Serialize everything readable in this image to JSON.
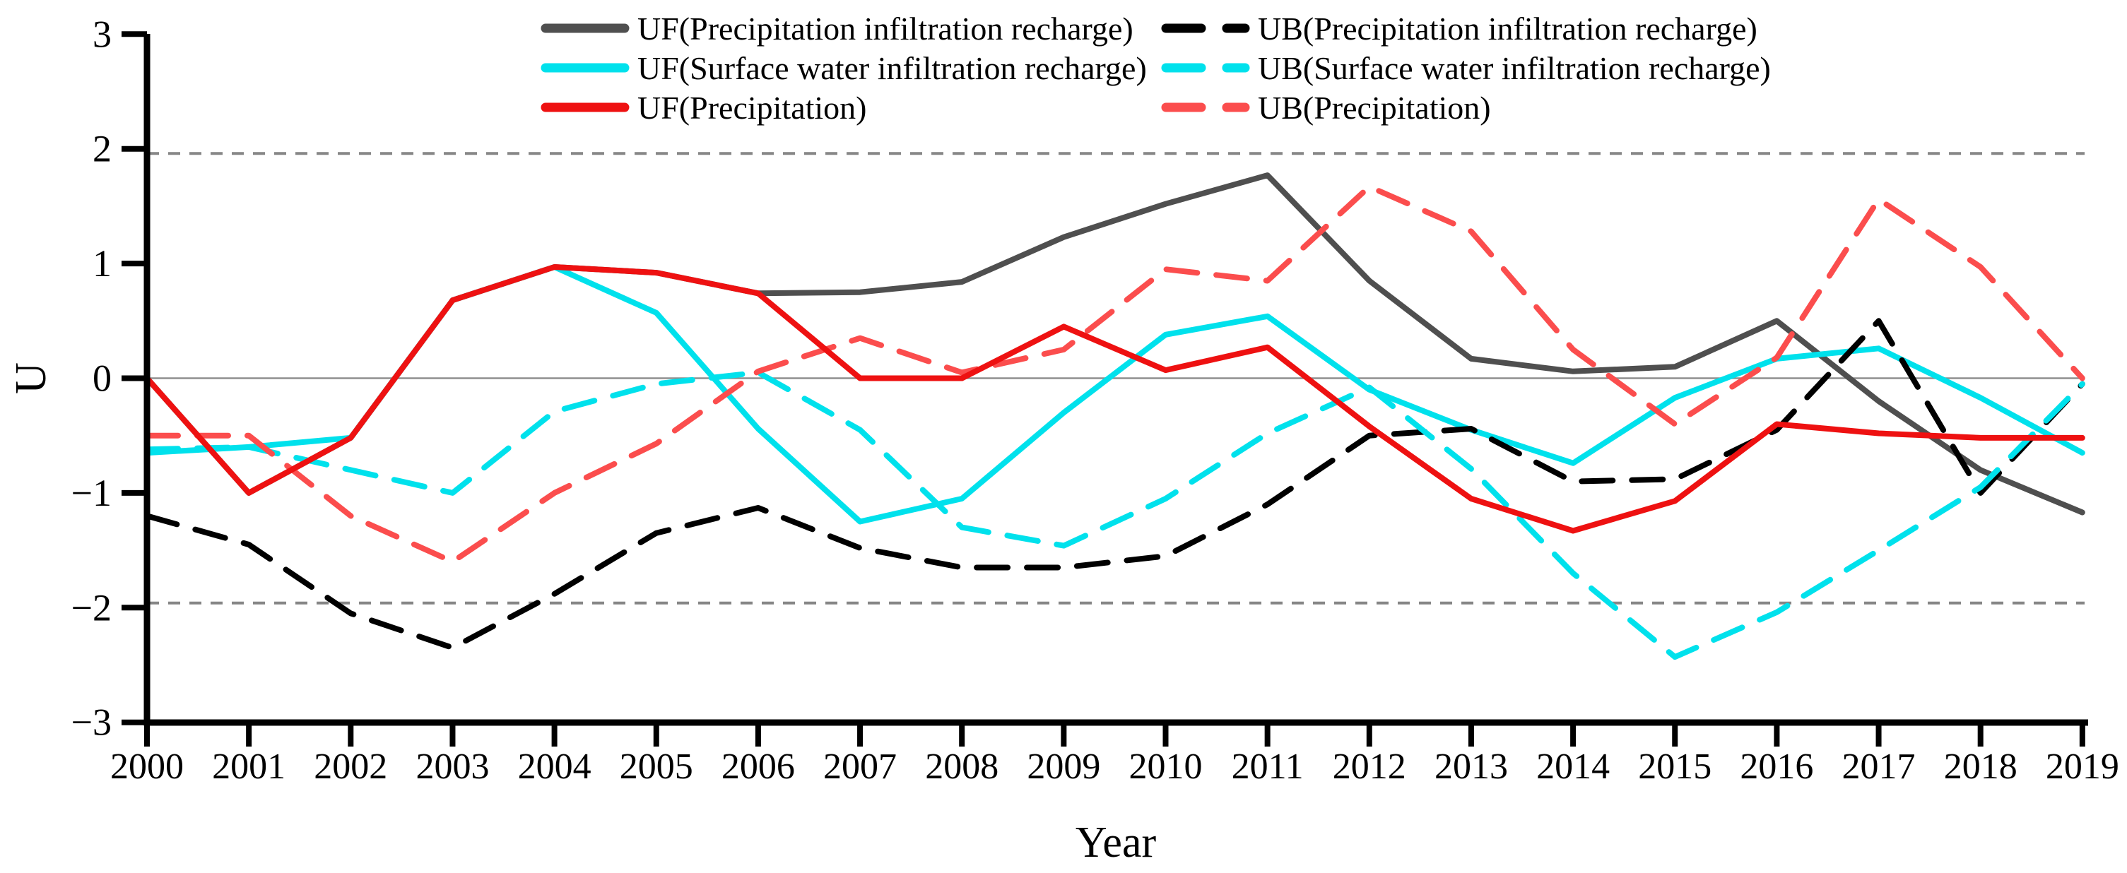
{
  "axes": {
    "x_label": "Year",
    "y_label": "U",
    "y_ticks": [
      {
        "v": 3,
        "label": "3"
      },
      {
        "v": 2,
        "label": "2"
      },
      {
        "v": 1,
        "label": "1"
      },
      {
        "v": 0,
        "label": "0"
      },
      {
        "v": -1,
        "label": "−1"
      },
      {
        "v": -2,
        "label": "−2"
      },
      {
        "v": -3,
        "label": "−3"
      }
    ]
  },
  "colors": {
    "uf_infiltration_gray": "#4f4f4f",
    "cyan": "#00e1ec",
    "red_solid": "#ee1111",
    "red_dashed": "#fb4d4d",
    "black": "#000000",
    "critical_line": "#868686",
    "zero_line": "#8f8f8f"
  },
  "chart_data": {
    "type": "line",
    "title": "",
    "xlabel": "Year",
    "ylabel": "U",
    "x": [
      2000,
      2001,
      2002,
      2003,
      2004,
      2005,
      2006,
      2007,
      2008,
      2009,
      2010,
      2011,
      2012,
      2013,
      2014,
      2015,
      2016,
      2017,
      2018,
      2019
    ],
    "ylim": [
      -3,
      3
    ],
    "xlim": [
      2000,
      2019
    ],
    "grid": false,
    "critical_values": [
      1.96,
      -1.96
    ],
    "zero_line": 0,
    "series": [
      {
        "name": "UF(Precipitation infiltration recharge)",
        "slug": "uf-precipitation-infiltration-recharge",
        "color": "#4f4f4f",
        "style": "solid",
        "values": [
          0.0,
          -1.0,
          -0.52,
          0.68,
          0.97,
          0.92,
          0.74,
          0.75,
          0.84,
          1.23,
          1.52,
          1.77,
          0.85,
          0.17,
          0.06,
          0.1,
          0.5,
          -0.2,
          -0.8,
          -1.17
        ]
      },
      {
        "name": "UF(Surface water infiltration recharge)",
        "slug": "uf-surface-water-infiltration-recharge",
        "color": "#00e1ec",
        "style": "solid",
        "values": [
          -0.65,
          -0.6,
          -0.52,
          0.68,
          0.97,
          0.57,
          -0.44,
          -1.25,
          -1.05,
          -0.3,
          0.38,
          0.54,
          -0.1,
          -0.45,
          -0.74,
          -0.17,
          0.17,
          0.26,
          -0.17,
          -0.65
        ]
      },
      {
        "name": "UB(Precipitation infiltration recharge)",
        "slug": "ub-precipitation-infiltration-recharge",
        "color": "#000000",
        "style": "dashed",
        "values": [
          -1.2,
          -1.45,
          -2.05,
          -2.35,
          -1.88,
          -1.35,
          -1.13,
          -1.48,
          -1.65,
          -1.65,
          -1.55,
          -1.1,
          -0.5,
          -0.44,
          -0.9,
          -0.88,
          -0.45,
          0.5,
          -1.0,
          -0.05
        ]
      },
      {
        "name": "UB(Surface water infiltration recharge)",
        "slug": "ub-surface-water-infiltration-recharge",
        "color": "#00e1ec",
        "style": "dashed",
        "values": [
          -0.62,
          -0.6,
          -0.8,
          -1.0,
          -0.29,
          -0.05,
          0.05,
          -0.45,
          -1.3,
          -1.46,
          -1.05,
          -0.48,
          -0.08,
          -0.79,
          -1.7,
          -2.43,
          -2.04,
          -1.5,
          -0.95,
          -0.05
        ]
      },
      {
        "name": "UB(Precipitation)",
        "slug": "ub-precipitation",
        "color": "#fb4d4d",
        "style": "dashed",
        "values": [
          -0.5,
          -0.5,
          -1.2,
          -1.6,
          -1.0,
          -0.57,
          0.06,
          0.35,
          0.05,
          0.25,
          0.95,
          0.85,
          1.67,
          1.28,
          0.25,
          -0.4,
          0.18,
          1.56,
          0.97,
          0.0
        ]
      },
      {
        "name": "UF(Precipitation)",
        "slug": "uf-precipitation",
        "color": "#ee1111",
        "style": "solid",
        "values": [
          0.0,
          -1.0,
          -0.52,
          0.68,
          0.97,
          0.92,
          0.74,
          0.0,
          0.0,
          0.45,
          0.07,
          0.27,
          -0.42,
          -1.05,
          -1.33,
          -1.07,
          -0.4,
          -0.48,
          -0.52,
          -0.52
        ]
      }
    ],
    "legend": {
      "position": "top",
      "columns": [
        [
          0,
          1,
          5
        ],
        [
          2,
          3,
          4
        ]
      ]
    }
  }
}
